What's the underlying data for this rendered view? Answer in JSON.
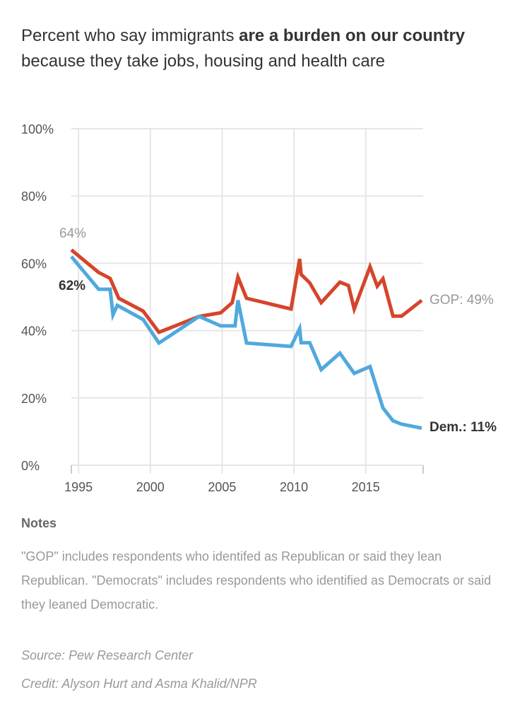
{
  "header": {
    "title_pre": "Percent who say immigrants ",
    "title_bold": "are a burden on our country",
    "title_post": " because they take jobs, housing and health care"
  },
  "chart_data": {
    "type": "line",
    "title": "Percent who say immigrants are a burden on our country because they take jobs, housing and health care",
    "xlabel": "",
    "ylabel": "",
    "xlim": [
      1994.5,
      2019
    ],
    "ylim": [
      0,
      100
    ],
    "x_ticks": [
      1995,
      2000,
      2005,
      2010,
      2015
    ],
    "y_ticks": [
      "0%",
      "20%",
      "40%",
      "60%",
      "80%",
      "100%"
    ],
    "grid": true,
    "series": [
      {
        "name": "GOP",
        "color": "#d5452b",
        "start_label": "64%",
        "end_label": "GOP: 49%",
        "points": [
          [
            1994.5,
            64
          ],
          [
            1996.4,
            57.3
          ],
          [
            1997.2,
            55.5
          ],
          [
            1997.8,
            49.6
          ],
          [
            1999.5,
            45.8
          ],
          [
            2000.6,
            39.5
          ],
          [
            2003.4,
            44.2
          ],
          [
            2004.9,
            45.3
          ],
          [
            2005.7,
            48.3
          ],
          [
            2006.1,
            55.9
          ],
          [
            2006.7,
            49.6
          ],
          [
            2009.8,
            46.4
          ],
          [
            2010.4,
            61.3
          ],
          [
            2010.5,
            56.7
          ],
          [
            2011.1,
            54.2
          ],
          [
            2011.9,
            48.3
          ],
          [
            2013.2,
            54.4
          ],
          [
            2013.8,
            53.4
          ],
          [
            2014.2,
            46.4
          ],
          [
            2015.3,
            59
          ],
          [
            2015.8,
            53.2
          ],
          [
            2016.2,
            55.4
          ],
          [
            2016.9,
            44.3
          ],
          [
            2017.5,
            44.3
          ],
          [
            2018.9,
            49
          ]
        ]
      },
      {
        "name": "Dem.",
        "color": "#4fa9dd",
        "start_label": "62%",
        "end_label": "Dem.: 11%",
        "points": [
          [
            1994.5,
            62
          ],
          [
            1996.4,
            52.3
          ],
          [
            1997.2,
            52.3
          ],
          [
            1997.4,
            44.7
          ],
          [
            1997.7,
            47.5
          ],
          [
            1999.5,
            43.3
          ],
          [
            2000.6,
            36.3
          ],
          [
            2003.4,
            44.2
          ],
          [
            2004.9,
            41.4
          ],
          [
            2005.9,
            41.4
          ],
          [
            2006.1,
            49
          ],
          [
            2006.7,
            36.3
          ],
          [
            2009.8,
            35.3
          ],
          [
            2010.4,
            40.6
          ],
          [
            2010.5,
            36.4
          ],
          [
            2011.1,
            36.4
          ],
          [
            2011.9,
            28.4
          ],
          [
            2013.2,
            33.3
          ],
          [
            2014.2,
            27.3
          ],
          [
            2015.3,
            29.3
          ],
          [
            2016.2,
            17
          ],
          [
            2016.9,
            13.2
          ],
          [
            2017.5,
            12.2
          ],
          [
            2018.9,
            11
          ]
        ]
      }
    ]
  },
  "notes": {
    "heading": "Notes",
    "text": "\"GOP\" includes respondents who identifed as Republican or said they lean Republican. \"Democrats\" includes respondents who identified as Democrats or said they leaned Democratic."
  },
  "source": "Source: Pew Research Center",
  "credit": "Credit: Alyson Hurt and Asma Khalid/NPR"
}
